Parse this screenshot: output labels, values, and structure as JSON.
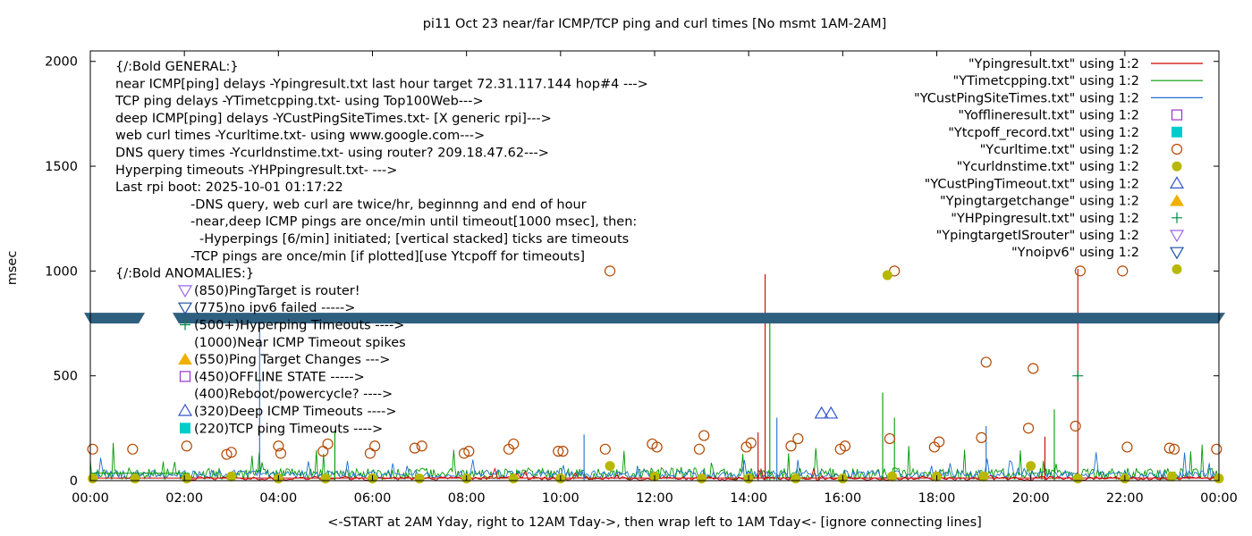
{
  "chart_data": {
    "type": "line",
    "title": "pi11 Oct 23  near/far ICMP/TCP ping and curl times [No msmt 1AM-2AM]",
    "xlabel": "<-START at 2AM Yday, right to 12AM Tday->, then wrap left to 1AM Tday<- [ignore connecting lines]",
    "ylabel": "msec",
    "xlim": [
      0,
      24
    ],
    "ylim": [
      0,
      2050
    ],
    "x_ticks": [
      {
        "v": 0,
        "label": "00:00"
      },
      {
        "v": 2,
        "label": "02:00"
      },
      {
        "v": 4,
        "label": "04:00"
      },
      {
        "v": 6,
        "label": "06:00"
      },
      {
        "v": 8,
        "label": "08:00"
      },
      {
        "v": 10,
        "label": "10:00"
      },
      {
        "v": 12,
        "label": "12:00"
      },
      {
        "v": 14,
        "label": "14:00"
      },
      {
        "v": 16,
        "label": "16:00"
      },
      {
        "v": 18,
        "label": "18:00"
      },
      {
        "v": 20,
        "label": "20:00"
      },
      {
        "v": 22,
        "label": "22:00"
      },
      {
        "v": 24,
        "label": "00:00"
      }
    ],
    "y_ticks": [
      {
        "v": 0,
        "label": "0"
      },
      {
        "v": 500,
        "label": "500"
      },
      {
        "v": 1000,
        "label": "1000"
      },
      {
        "v": 1500,
        "label": "1500"
      },
      {
        "v": 2000,
        "label": "2000"
      }
    ],
    "break_band": {
      "y": 775
    },
    "legend_position": "top-right",
    "series": [
      {
        "name": "\"Ypingresult.txt\" using 1:2",
        "style": "line",
        "color": "#cc0000"
      },
      {
        "name": "\"YTimetcpping.txt\" using 1:2",
        "style": "line",
        "color": "#009900"
      },
      {
        "name": "\"YCustPingSiteTimes.txt\" using 1:2",
        "style": "line",
        "color": "#1f6fd1"
      },
      {
        "name": "\"Yofflineresult.txt\" using 1:2",
        "style": "open-square",
        "color": "#9933cc"
      },
      {
        "name": "\"Ytcpoff_record.txt\" using 1:2",
        "style": "filled-square",
        "color": "#00cccc"
      },
      {
        "name": "\"Ycurltime.txt\" using 1:2",
        "style": "open-circle",
        "color": "#b34700"
      },
      {
        "name": "\"Ycurldnstime.txt\" using 1:2",
        "style": "filled-circle",
        "color": "#b8b800"
      },
      {
        "name": "\"YCustPingTimeout.txt\" using 1:2",
        "style": "open-triangle",
        "color": "#3355cc"
      },
      {
        "name": "\"Ypingtargetchange\" using 1:2",
        "style": "filled-triangle",
        "color": "#f0b000"
      },
      {
        "name": "\"YHPpingresult.txt\" using 1:2",
        "style": "plus",
        "color": "#008844"
      },
      {
        "name": "\"YpingtargetISrouter\" using 1:2",
        "style": "open-down-triangle",
        "color": "#9966ee"
      },
      {
        "name": "\"Ynoipv6\" using 1:2",
        "style": "open-down-triangle",
        "color": "#1a4fa0"
      }
    ],
    "key_extra_marker": {
      "style": "filled-circle",
      "color": "#b8b800"
    },
    "spikes": [
      {
        "series": 0,
        "x": 14.35,
        "y": 985
      },
      {
        "series": 0,
        "x": 21.0,
        "y": 1010
      },
      {
        "series": 0,
        "x": 14.2,
        "y": 230
      },
      {
        "series": 0,
        "x": 20.3,
        "y": 210
      },
      {
        "series": 1,
        "x": 14.45,
        "y": 750
      },
      {
        "series": 1,
        "x": 16.85,
        "y": 420
      },
      {
        "series": 1,
        "x": 20.5,
        "y": 340
      },
      {
        "series": 1,
        "x": 17.1,
        "y": 300
      },
      {
        "series": 1,
        "x": 5.2,
        "y": 240
      },
      {
        "series": 2,
        "x": 3.6,
        "y": 760
      },
      {
        "series": 2,
        "x": 14.6,
        "y": 300
      },
      {
        "series": 2,
        "x": 19.05,
        "y": 260
      },
      {
        "series": 2,
        "x": 10.5,
        "y": 220
      }
    ],
    "points": [
      {
        "series": 5,
        "x": 0.05,
        "y": 150
      },
      {
        "series": 5,
        "x": 0.9,
        "y": 150
      },
      {
        "series": 5,
        "x": 2.05,
        "y": 165
      },
      {
        "series": 5,
        "x": 2.9,
        "y": 125
      },
      {
        "series": 5,
        "x": 3.0,
        "y": 135
      },
      {
        "series": 5,
        "x": 4.0,
        "y": 165
      },
      {
        "series": 5,
        "x": 4.05,
        "y": 130
      },
      {
        "series": 5,
        "x": 4.95,
        "y": 140
      },
      {
        "series": 5,
        "x": 5.05,
        "y": 175
      },
      {
        "series": 5,
        "x": 5.95,
        "y": 130
      },
      {
        "series": 5,
        "x": 6.05,
        "y": 165
      },
      {
        "series": 5,
        "x": 6.9,
        "y": 155
      },
      {
        "series": 5,
        "x": 7.05,
        "y": 165
      },
      {
        "series": 5,
        "x": 7.95,
        "y": 130
      },
      {
        "series": 5,
        "x": 8.05,
        "y": 140
      },
      {
        "series": 5,
        "x": 8.9,
        "y": 150
      },
      {
        "series": 5,
        "x": 9.0,
        "y": 175
      },
      {
        "series": 5,
        "x": 9.95,
        "y": 140
      },
      {
        "series": 5,
        "x": 10.05,
        "y": 140
      },
      {
        "series": 5,
        "x": 10.95,
        "y": 150
      },
      {
        "series": 5,
        "x": 11.05,
        "y": 1000
      },
      {
        "series": 5,
        "x": 11.95,
        "y": 175
      },
      {
        "series": 5,
        "x": 12.05,
        "y": 160
      },
      {
        "series": 5,
        "x": 12.95,
        "y": 150
      },
      {
        "series": 5,
        "x": 13.05,
        "y": 215
      },
      {
        "series": 5,
        "x": 13.95,
        "y": 160
      },
      {
        "series": 5,
        "x": 14.05,
        "y": 180
      },
      {
        "series": 5,
        "x": 14.9,
        "y": 165
      },
      {
        "series": 5,
        "x": 15.05,
        "y": 200
      },
      {
        "series": 5,
        "x": 15.95,
        "y": 150
      },
      {
        "series": 5,
        "x": 16.05,
        "y": 165
      },
      {
        "series": 5,
        "x": 17.0,
        "y": 200
      },
      {
        "series": 5,
        "x": 17.1,
        "y": 1000
      },
      {
        "series": 5,
        "x": 17.95,
        "y": 160
      },
      {
        "series": 5,
        "x": 18.05,
        "y": 185
      },
      {
        "series": 5,
        "x": 18.95,
        "y": 205
      },
      {
        "series": 5,
        "x": 19.05,
        "y": 565
      },
      {
        "series": 5,
        "x": 19.95,
        "y": 250
      },
      {
        "series": 5,
        "x": 20.05,
        "y": 535
      },
      {
        "series": 5,
        "x": 20.95,
        "y": 260
      },
      {
        "series": 5,
        "x": 21.05,
        "y": 1000
      },
      {
        "series": 5,
        "x": 21.95,
        "y": 1000
      },
      {
        "series": 5,
        "x": 22.05,
        "y": 160
      },
      {
        "series": 5,
        "x": 22.95,
        "y": 155
      },
      {
        "series": 5,
        "x": 23.05,
        "y": 150
      },
      {
        "series": 5,
        "x": 23.95,
        "y": 150
      },
      {
        "series": 6,
        "x": 0.05,
        "y": 10
      },
      {
        "series": 6,
        "x": 0.95,
        "y": 10
      },
      {
        "series": 6,
        "x": 2.05,
        "y": 10
      },
      {
        "series": 6,
        "x": 3.0,
        "y": 20
      },
      {
        "series": 6,
        "x": 4.0,
        "y": 10
      },
      {
        "series": 6,
        "x": 5.0,
        "y": 10
      },
      {
        "series": 6,
        "x": 6.0,
        "y": 10
      },
      {
        "series": 6,
        "x": 7.0,
        "y": 10
      },
      {
        "series": 6,
        "x": 8.0,
        "y": 10
      },
      {
        "series": 6,
        "x": 9.0,
        "y": 10
      },
      {
        "series": 6,
        "x": 10.0,
        "y": 10
      },
      {
        "series": 6,
        "x": 11.05,
        "y": 70
      },
      {
        "series": 6,
        "x": 12.0,
        "y": 20
      },
      {
        "series": 6,
        "x": 13.0,
        "y": 10
      },
      {
        "series": 6,
        "x": 14.0,
        "y": 10
      },
      {
        "series": 6,
        "x": 15.0,
        "y": 10
      },
      {
        "series": 6,
        "x": 16.0,
        "y": 10
      },
      {
        "series": 6,
        "x": 16.95,
        "y": 980
      },
      {
        "series": 6,
        "x": 17.05,
        "y": 20
      },
      {
        "series": 6,
        "x": 18.0,
        "y": 20
      },
      {
        "series": 6,
        "x": 19.0,
        "y": 20
      },
      {
        "series": 6,
        "x": 20.0,
        "y": 70
      },
      {
        "series": 6,
        "x": 21.0,
        "y": 10
      },
      {
        "series": 6,
        "x": 22.0,
        "y": 10
      },
      {
        "series": 6,
        "x": 23.0,
        "y": 20
      },
      {
        "series": 6,
        "x": 24.0,
        "y": 10
      },
      {
        "series": 7,
        "x": 15.55,
        "y": 320
      },
      {
        "series": 7,
        "x": 15.75,
        "y": 320
      },
      {
        "series": 9,
        "x": 21.0,
        "y": 500
      }
    ],
    "annotations": [
      {
        "row": 0,
        "indent": 0,
        "text": "{/:Bold GENERAL:}"
      },
      {
        "row": 1,
        "indent": 0,
        "text": "near ICMP[ping] delays -Ypingresult.txt last hour target 72.31.117.144 hop#4 --->"
      },
      {
        "row": 2,
        "indent": 0,
        "text": "TCP ping delays -YTimetcpping.txt- using Top100Web--->"
      },
      {
        "row": 3,
        "indent": 0,
        "text": "deep ICMP[ping] delays -YCustPingSiteTimes.txt- [X generic rpi]--->"
      },
      {
        "row": 4,
        "indent": 0,
        "text": "web curl times -Ycurltime.txt- using www.google.com--->"
      },
      {
        "row": 5,
        "indent": 0,
        "text": "DNS query times -Ycurldnstime.txt- using router? 209.18.47.62--->"
      },
      {
        "row": 6,
        "indent": 0,
        "text": "Hyperping timeouts -YHPpingresult.txt- --->"
      },
      {
        "row": 7,
        "indent": 0,
        "text": "Last rpi boot: 2025-10-01 01:17:22"
      },
      {
        "row": 8,
        "indent": 1,
        "text": "-DNS query, web curl are twice/hr, beginnng and end of hour"
      },
      {
        "row": 9,
        "indent": 1,
        "text": "-near,deep ICMP pings are once/min until timeout[1000 msec], then:"
      },
      {
        "row": 10,
        "indent": 2,
        "text": "-Hyperpings [6/min] initiated; [vertical stacked] ticks are timeouts"
      },
      {
        "row": 11,
        "indent": 1,
        "text": "-TCP pings are once/min [if plotted][use Ytcpoff for timeouts]"
      },
      {
        "row": 12,
        "indent": 0,
        "text": "{/:Bold ANOMALIES:}"
      },
      {
        "row": 13,
        "indent": 3,
        "text": "(850)PingTarget is router!",
        "marker": 10
      },
      {
        "row": 14,
        "indent": 3,
        "text": "(775)no ipv6 failed ----->",
        "marker": 11
      },
      {
        "row": 15,
        "indent": 3,
        "text": "(500+)Hyperping Timeouts ---->",
        "marker": 9
      },
      {
        "row": 16,
        "indent": 3,
        "text": "(1000)Near ICMP Timeout spikes"
      },
      {
        "row": 17,
        "indent": 3,
        "text": "(550)Ping Target Changes --->",
        "marker": 8
      },
      {
        "row": 18,
        "indent": 3,
        "text": "(450)OFFLINE STATE ----->",
        "marker": 3
      },
      {
        "row": 19,
        "indent": 3,
        "text": "(400)Reboot/powercycle? ---->"
      },
      {
        "row": 20,
        "indent": 3,
        "text": "(320)Deep ICMP Timeouts ---->",
        "marker": 7
      },
      {
        "row": 21,
        "indent": 3,
        "text": "(220)TCP ping Timeouts ---->",
        "marker": 4
      }
    ]
  }
}
